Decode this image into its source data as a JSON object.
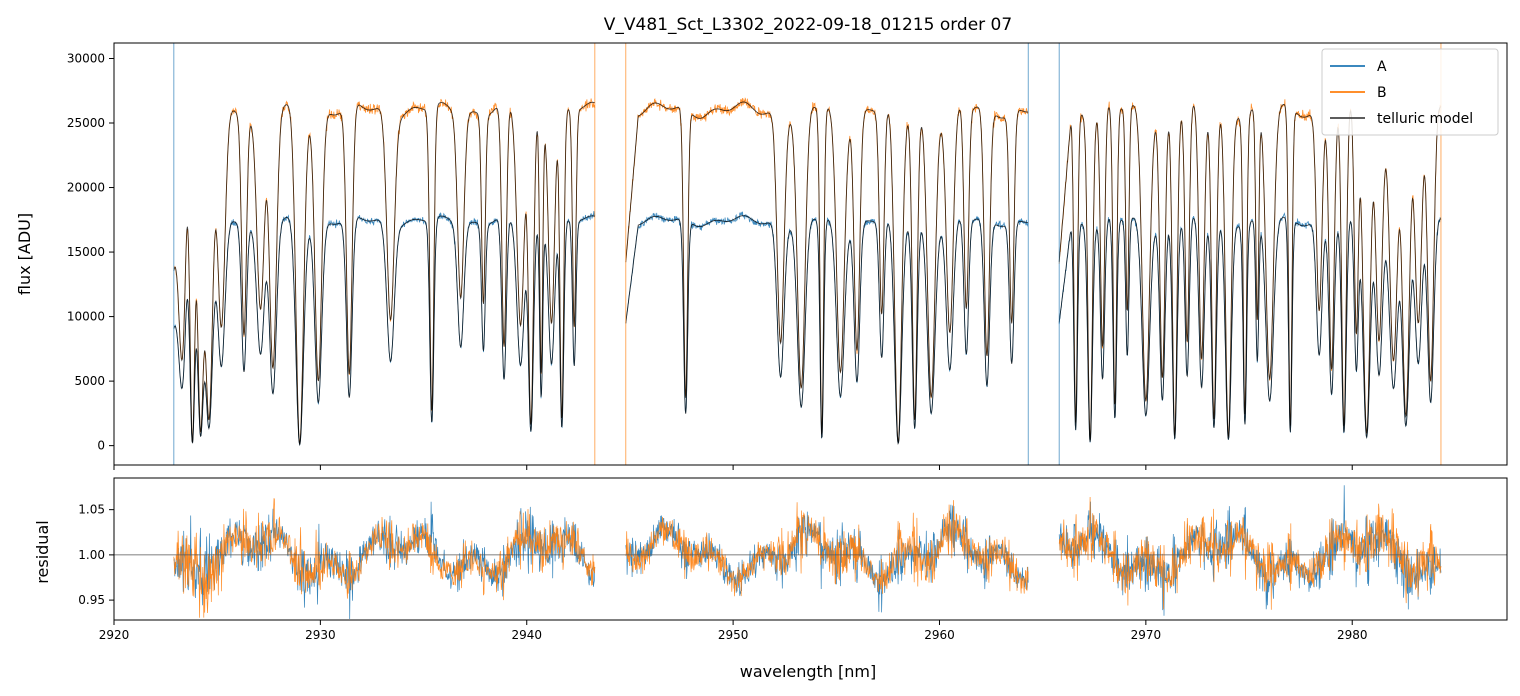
{
  "chart_data": {
    "type": "line",
    "title": "V_V481_Sct_L3302_2022-09-18_01215  order 07",
    "xlabel": "wavelength [nm]",
    "xlim": [
      2920,
      2987.5
    ],
    "x_ticks": [
      "2920",
      "2930",
      "2940",
      "2950",
      "2960",
      "2970",
      "2980"
    ],
    "x_tick_values": [
      2920,
      2930,
      2940,
      2950,
      2960,
      2970,
      2980
    ],
    "colors": {
      "A": "#1f77b4",
      "B": "#ff7f0e",
      "model": "#000000",
      "refline": "#555555"
    },
    "segments": [
      [
        2922.9,
        2943.3
      ],
      [
        2944.8,
        2964.3
      ],
      [
        2965.8,
        2984.3
      ]
    ],
    "top_panel": {
      "ylabel": "flux [ADU]",
      "ylim": [
        -1500,
        31200
      ],
      "y_ticks": [
        "0",
        "5000",
        "10000",
        "15000",
        "20000",
        "25000",
        "30000"
      ],
      "y_tick_values": [
        0,
        5000,
        10000,
        15000,
        20000,
        25000,
        30000
      ],
      "series": [
        {
          "name": "A",
          "continuum_level": 17400
        },
        {
          "name": "B",
          "continuum_level": 26000
        },
        {
          "name": "telluric model"
        }
      ],
      "absorption_lines_nm": [
        2923.3,
        2923.8,
        2924.2,
        2924.6,
        2925.2,
        2926.3,
        2927.1,
        2927.7,
        2929.0,
        2929.9,
        2931.4,
        2933.4,
        2935.4,
        2936.8,
        2937.9,
        2938.9,
        2939.7,
        2940.2,
        2940.7,
        2941.2,
        2941.7,
        2942.3,
        2947.7,
        2952.3,
        2953.3,
        2954.3,
        2955.2,
        2956.0,
        2957.2,
        2958.0,
        2958.8,
        2959.6,
        2960.5,
        2961.3,
        2962.3,
        2963.5,
        2966.6,
        2967.3,
        2967.9,
        2968.5,
        2969.1,
        2970.0,
        2970.8,
        2971.4,
        2972.0,
        2972.7,
        2973.3,
        2974.0,
        2974.8,
        2975.4,
        2976.0,
        2977.0,
        2978.4,
        2979.0,
        2979.6,
        2980.2,
        2980.7,
        2981.3,
        2982.0,
        2982.6,
        2983.2,
        2983.8
      ]
    },
    "bottom_panel": {
      "ylabel": "residual",
      "ylim": [
        0.928,
        1.085
      ],
      "y_ticks": [
        "0.95",
        "1.00",
        "1.05"
      ],
      "y_tick_values": [
        0.95,
        1.0,
        1.05
      ],
      "reference_line": 1.0
    },
    "legend": {
      "position": "top-right",
      "entries": [
        "A",
        "B",
        "telluric model"
      ]
    }
  }
}
